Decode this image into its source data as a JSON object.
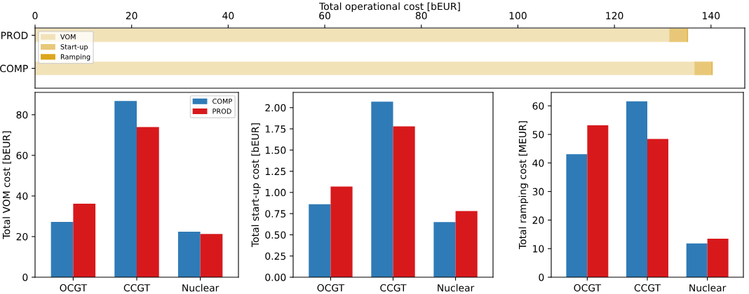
{
  "chart_data": [
    {
      "type": "bar",
      "orientation": "horizontal",
      "stacked": true,
      "xlabel": "Total operational cost [bEUR]",
      "categories": [
        "PROD",
        "COMP"
      ],
      "xlim": [
        0,
        147
      ],
      "xticks": [
        0,
        20,
        40,
        60,
        80,
        100,
        120,
        140
      ],
      "legend": "top left",
      "grid": false,
      "series": [
        {
          "name": "VOM",
          "color": "#f2e2b8",
          "values": [
            131.4,
            136.6
          ]
        },
        {
          "name": "Start-up",
          "color": "#e8c878",
          "values": [
            3.7,
            3.6
          ]
        },
        {
          "name": "Ramping",
          "color": "#dca61c",
          "values": [
            0.1,
            0.1
          ]
        }
      ]
    },
    {
      "type": "bar",
      "ylabel": "Total VOM cost [bEUR]",
      "categories": [
        "OCGT",
        "CCGT",
        "Nuclear"
      ],
      "ylim": [
        0,
        91
      ],
      "yticks": [
        0,
        20,
        40,
        60,
        80
      ],
      "legend": "top right",
      "grid": false,
      "series": [
        {
          "name": "COMP",
          "color": "#2f7bb7",
          "values": [
            27.2,
            86.8,
            22.4
          ]
        },
        {
          "name": "PROD",
          "color": "#d7191c",
          "values": [
            36.2,
            73.9,
            21.3
          ]
        }
      ]
    },
    {
      "type": "bar",
      "ylabel": "Total start-up cost [bEUR]",
      "categories": [
        "OCGT",
        "CCGT",
        "Nuclear"
      ],
      "ylim": [
        0,
        2.18
      ],
      "yticks": [
        {
          "value": 0,
          "label": "0.00"
        },
        0.25,
        {
          "value": 0.5,
          "label": "0.50"
        },
        0.75,
        {
          "value": 1,
          "label": "1.00"
        },
        1.25,
        {
          "value": 1.5,
          "label": "1.50"
        },
        1.75,
        {
          "value": 2,
          "label": "2.00"
        }
      ],
      "grid": false,
      "series": [
        {
          "color": "#2f7bb7",
          "values": [
            0.86,
            2.07,
            0.65
          ]
        },
        {
          "color": "#d7191c",
          "values": [
            1.07,
            1.78,
            0.78
          ]
        }
      ]
    },
    {
      "type": "bar",
      "ylabel": "Total ramping cost [MEUR]",
      "categories": [
        "OCGT",
        "CCGT",
        "Nuclear"
      ],
      "ylim": [
        0,
        64.7
      ],
      "yticks": [
        0,
        10,
        20,
        30,
        40,
        50,
        60
      ],
      "grid": false,
      "series": [
        {
          "color": "#2f7bb7",
          "values": [
            43.1,
            61.6,
            11.8
          ]
        },
        {
          "color": "#d7191c",
          "values": [
            53.2,
            48.4,
            13.5
          ]
        }
      ]
    }
  ]
}
